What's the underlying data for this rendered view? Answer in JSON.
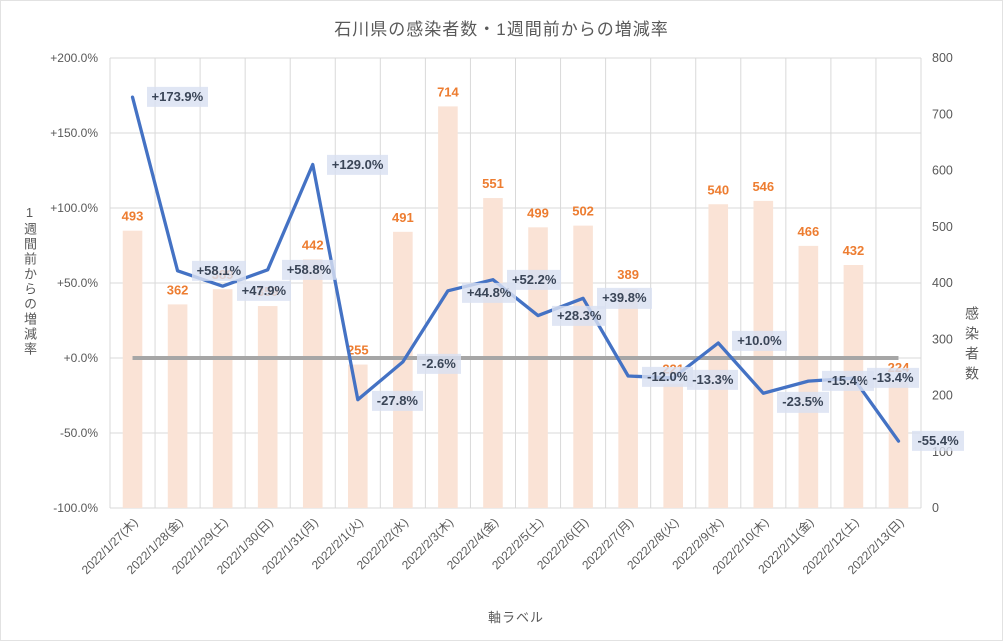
{
  "title": "石川県の感染者数・1週間前からの増減率",
  "axes": {
    "left": {
      "title": "1週間前からの増減率",
      "ticks": [
        "+200.0%",
        "+150.0%",
        "+100.0%",
        "+50.0%",
        "+0.0%",
        "-50.0%",
        "-100.0%"
      ]
    },
    "right": {
      "title": "感染者数",
      "ticks": [
        "800",
        "700",
        "600",
        "500",
        "400",
        "300",
        "200",
        "100",
        "0"
      ]
    },
    "x": {
      "title": "軸ラベル"
    }
  },
  "chart_data": {
    "type": "bar+line combo",
    "title": "石川県の感染者数・1週間前からの増減率",
    "categories": [
      "2022/1/27(木)",
      "2022/1/28(金)",
      "2022/1/29(土)",
      "2022/1/30(日)",
      "2022/1/31(月)",
      "2022/2/1(火)",
      "2022/2/2(水)",
      "2022/2/3(木)",
      "2022/2/4(金)",
      "2022/2/5(土)",
      "2022/2/6(日)",
      "2022/2/7(月)",
      "2022/2/8(火)",
      "2022/2/9(水)",
      "2022/2/10(木)",
      "2022/2/11(金)",
      "2022/2/12(土)",
      "2022/2/13(日)"
    ],
    "series": [
      {
        "name": "感染者数",
        "type": "bar",
        "axis": "right",
        "values": [
          493,
          362,
          389,
          359,
          442,
          255,
          491,
          714,
          551,
          499,
          502,
          389,
          221,
          540,
          546,
          466,
          432,
          224
        ],
        "labels": [
          "493",
          "362",
          "389",
          "359",
          "442",
          "255",
          "491",
          "714",
          "551",
          "499",
          "502",
          "389",
          "221",
          "540",
          "546",
          "466",
          "432",
          "224"
        ]
      },
      {
        "name": "1週間前からの増減率",
        "type": "line",
        "axis": "left",
        "values": [
          173.9,
          58.1,
          47.9,
          58.8,
          129.0,
          -27.8,
          -2.6,
          44.8,
          52.2,
          28.3,
          39.8,
          -12.0,
          -13.3,
          10.0,
          -23.5,
          -15.4,
          -13.4,
          -55.4
        ],
        "labels": [
          "+173.9%",
          "+58.1%",
          "+47.9%",
          "+58.8%",
          "+129.0%",
          "-27.8%",
          "-2.6%",
          "+44.8%",
          "+52.2%",
          "+28.3%",
          "+39.8%",
          "-12.0%",
          "-13.3%",
          "+10.0%",
          "-23.5%",
          "-15.4%",
          "-13.4%",
          "-55.4%"
        ]
      },
      {
        "name": "zero-baseline",
        "type": "line",
        "axis": "left",
        "constant": 0
      }
    ],
    "left_axis_range": [
      -100,
      200
    ],
    "left_axis_step": 50,
    "right_axis_range": [
      0,
      800
    ],
    "right_axis_step": 100,
    "xlabel": "軸ラベル",
    "ylabel_left": "1週間前からの増減率",
    "ylabel_right": "感染者数",
    "grid": true,
    "legend": "none",
    "colors": {
      "bar_fill": "#FAE3D6",
      "bar_label": "#ED7D31",
      "line": "#4472C4",
      "zero_line": "#A6A6A6",
      "pct_label_text": "#3A4557",
      "pct_label_bg": "#D9E1F2",
      "gridline": "#D9D9D9",
      "axis_text": "#595959",
      "title_text": "#595959"
    }
  }
}
